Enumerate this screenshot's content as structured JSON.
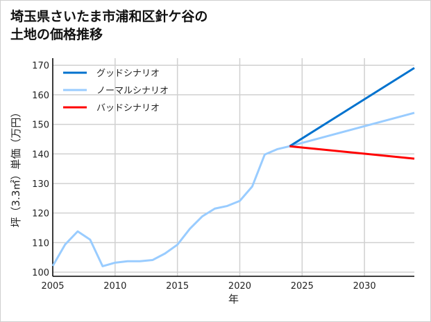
{
  "chart_data": {
    "type": "line",
    "title_lines": [
      "埼玉県さいたま市浦和区針ケ谷の",
      "土地の価格推移"
    ],
    "xlabel": "年",
    "ylabel": "坪（3.3㎡）単価（万円）",
    "xlim": [
      2005,
      2034
    ],
    "ylim": [
      98.6,
      172.4
    ],
    "xticks": [
      2005,
      2010,
      2015,
      2020,
      2025,
      2030
    ],
    "yticks": [
      100,
      110,
      120,
      130,
      140,
      150,
      160,
      170
    ],
    "grid": true,
    "legend_placement": "top-left",
    "series": [
      {
        "name": "グッドシナリオ",
        "color": "#0072CE",
        "x": [
          2024,
          2034
        ],
        "y": [
          142.6,
          169.1
        ]
      },
      {
        "name": "ノーマルシナリオ",
        "color": "#99CCFF",
        "x": [
          2005,
          2006,
          2007,
          2008,
          2009,
          2010,
          2011,
          2012,
          2013,
          2014,
          2015,
          2016,
          2017,
          2018,
          2019,
          2020,
          2021,
          2022,
          2023,
          2024,
          2034
        ],
        "y": [
          102.1,
          109.4,
          113.8,
          111.0,
          102.0,
          103.2,
          103.7,
          103.7,
          104.1,
          106.3,
          109.3,
          114.7,
          118.9,
          121.5,
          122.4,
          124.1,
          129.0,
          139.8,
          141.6,
          142.6,
          153.9
        ]
      },
      {
        "name": "バッドシナリオ",
        "color": "#FF0000",
        "x": [
          2024,
          2034
        ],
        "y": [
          142.6,
          138.4
        ]
      }
    ]
  }
}
